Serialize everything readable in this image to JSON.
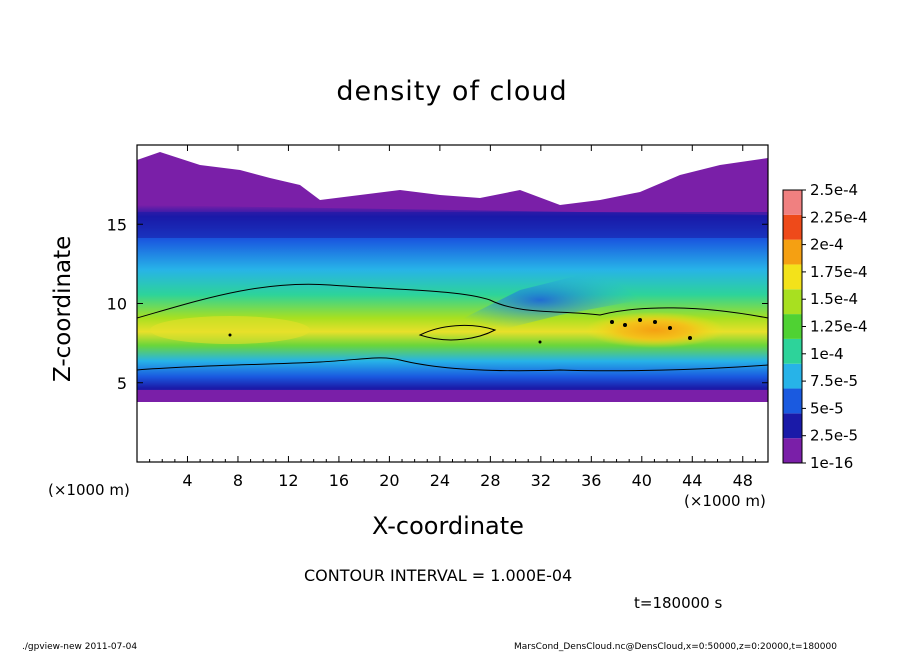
{
  "chart_data": {
    "type": "heatmap",
    "title": "density of cloud",
    "xlabel": "X-coordinate",
    "ylabel": "Z-coordinate",
    "x_unit_left": "(×1000 m)",
    "x_unit_right": "(×1000 m)",
    "xlim": [
      0,
      50
    ],
    "ylim": [
      0,
      20
    ],
    "x_ticks": [
      "4",
      "8",
      "12",
      "16",
      "20",
      "24",
      "28",
      "32",
      "36",
      "40",
      "44",
      "48"
    ],
    "x_tick_values": [
      4,
      8,
      12,
      16,
      20,
      24,
      28,
      32,
      36,
      40,
      44,
      48
    ],
    "y_ticks": [
      "5",
      "10",
      "15"
    ],
    "y_tick_values": [
      5,
      10,
      15
    ],
    "colorbar": {
      "labels": [
        "1e-16",
        "2.5e-5",
        "5e-5",
        "7.5e-5",
        "1e-4",
        "1.25e-4",
        "1.5e-4",
        "1.75e-4",
        "2e-4",
        "2.25e-4",
        "2.5e-4"
      ],
      "colors": [
        "#7a1fa8",
        "#1a1aa8",
        "#1a5ae0",
        "#27b3e8",
        "#2dd39a",
        "#4fd233",
        "#a8e020",
        "#f3e21a",
        "#f5a012",
        "#ee4a1a",
        "#f08080"
      ]
    },
    "contour_interval": "CONTOUR INTERVAL = 1.000E-04",
    "time": "t=180000 s",
    "description_levels": [
      {
        "z_range": [
          4.2,
          5.0
        ],
        "level": "2.5e-5 to 5e-5 near x=0-50"
      },
      {
        "z_range": [
          7.5,
          9.0
        ],
        "level": "1.5e-4 to 2e-4 peak near x=36-44"
      }
    ]
  },
  "footer": {
    "left": "./gpview-new  2011-07-04",
    "right": "MarsCond_DensCloud.nc@DensCloud,x=0:50000,z=0:20000,t=180000"
  }
}
